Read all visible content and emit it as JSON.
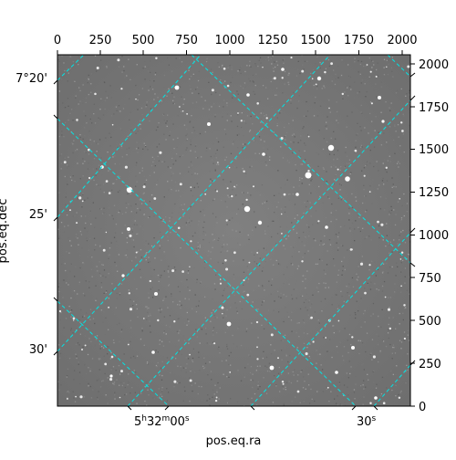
{
  "figure": {
    "xlabel": "pos.eq.ra",
    "ylabel": "pos.eq.dec",
    "top_ticks": [
      "0",
      "250",
      "500",
      "750",
      "1000",
      "1250",
      "1500",
      "1750",
      "2000"
    ],
    "right_ticks": [
      "0",
      "250",
      "500",
      "750",
      "1000",
      "1250",
      "1500",
      "1750",
      "2000"
    ],
    "ra_ticks": {
      "major": "5",
      "h": "h",
      "min": "32",
      "m": "m",
      "sec": "00",
      "s": "s",
      "minor": "30",
      "minor_s": "s"
    },
    "dec_ticks": [
      "7°20'",
      "25'",
      "30'"
    ]
  },
  "colors": {
    "background": "#7a7a7a",
    "grid": "#00e5e5",
    "star": "#ffffff"
  }
}
